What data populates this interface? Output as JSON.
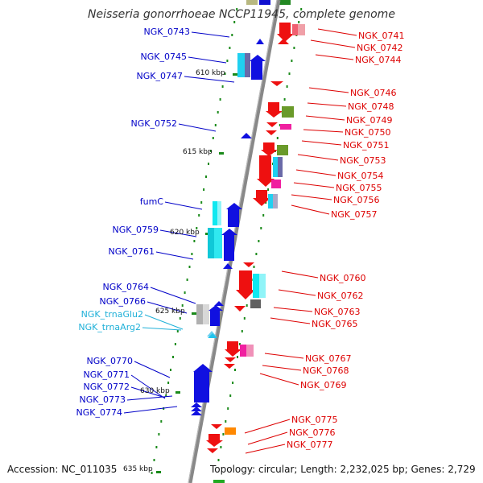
{
  "title": "Neisseria gonorrhoeae NCCP11945, complete genome",
  "accession": "Accession: NC_011035",
  "topology": "Topology: circular; Length: 2,232,025 bp; Genes: 2,729",
  "colors": {
    "left_label": "#0000c8",
    "trna_label": "#1fb0d8",
    "right_label": "#dd0000",
    "backbone": "#888888",
    "tick": "#1a8a1a"
  },
  "kbp_labels": [
    "610 kbp",
    "615 kbp",
    "620 kbp",
    "625 kbp",
    "630 kbp",
    "635 kbp"
  ],
  "left_labels": [
    "NGK_0743",
    "NGK_0745",
    "NGK_0747",
    "NGK_0752",
    "fumC",
    "NGK_0759",
    "NGK_0761",
    "NGK_0764",
    "NGK_0766",
    "NGK_trnaGlu2",
    "NGK_trnaArg2",
    "NGK_0770",
    "NGK_0771",
    "NGK_0772",
    "NGK_0773",
    "NGK_0774"
  ],
  "right_labels": [
    "NGK_0741",
    "NGK_0742",
    "NGK_0744",
    "NGK_0746",
    "NGK_0748",
    "NGK_0749",
    "NGK_0750",
    "NGK_0751",
    "NGK_0753",
    "NGK_0754",
    "NGK_0755",
    "NGK_0756",
    "NGK_0757",
    "NGK_0760",
    "NGK_0762",
    "NGK_0763",
    "NGK_0765",
    "NGK_0767",
    "NGK_0768",
    "NGK_0769",
    "NGK_0775",
    "NGK_0776",
    "NGK_0777"
  ]
}
